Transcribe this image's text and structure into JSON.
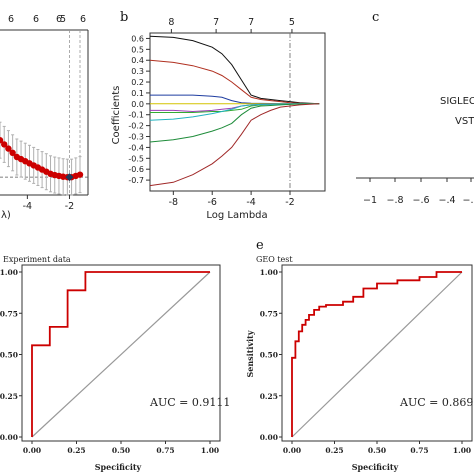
{
  "panels": {
    "a": {
      "letter": "",
      "top_ticks": [
        "6",
        "6",
        "6",
        "5",
        "6"
      ],
      "x_ticks": [
        "-4",
        "-2"
      ],
      "x_label": "λ)",
      "colors": {
        "points": "#cc0000",
        "errorbars": "#b0b0b0",
        "vline": "#999999"
      },
      "chart_data": {
        "type": "scatter",
        "title": "",
        "xlabel": "Log(λ)",
        "ylabel": "",
        "x": [
          -5.5,
          -5.3,
          -5.1,
          -4.9,
          -4.7,
          -4.5,
          -4.3,
          -4.1,
          -3.9,
          -3.7,
          -3.5,
          -3.3,
          -3.1,
          -2.9,
          -2.7,
          -2.5,
          -2.3,
          -2.1,
          -1.9,
          -1.7,
          -1.5
        ],
        "y": [
          0.36,
          0.35,
          0.34,
          0.33,
          0.32,
          0.31,
          0.305,
          0.3,
          0.295,
          0.29,
          0.285,
          0.28,
          0.275,
          0.27,
          0.267,
          0.265,
          0.263,
          0.262,
          0.262,
          0.265,
          0.268
        ],
        "vlines": [
          -2.0,
          -1.5
        ]
      }
    },
    "b": {
      "letter": "b",
      "top_ticks": [
        "8",
        "7",
        "7",
        "5"
      ],
      "y_ticks": [
        "0.6",
        "0.5",
        "0.4",
        "0.3",
        "0.2",
        "0.1",
        "0.0",
        "-0.1",
        "-0.2",
        "-0.3",
        "-0.4",
        "-0.5",
        "-0.6",
        "-0.7"
      ],
      "x_ticks": [
        "-8",
        "-6",
        "-4",
        "-2"
      ],
      "x_label": "Log Lambda",
      "y_label": "Coefficients",
      "chart_data": {
        "type": "line",
        "title": "",
        "xlabel": "Log Lambda",
        "ylabel": "Coefficients",
        "xlim": [
          -9.2,
          -0.2
        ],
        "ylim": [
          -0.8,
          0.65
        ],
        "top_axis": {
          "x": [
            -8.1,
            -5.8,
            -4.0,
            -1.9
          ],
          "labels": [
            "8",
            "7",
            "7",
            "5"
          ]
        },
        "vline": -2.0,
        "x": [
          -9.2,
          -8,
          -7,
          -6,
          -5.5,
          -5,
          -4.5,
          -4,
          -3.5,
          -3,
          -2.5,
          -2,
          -1.5,
          -1,
          -0.5
        ],
        "series": [
          {
            "color": "#111111",
            "values": [
              0.62,
              0.61,
              0.58,
              0.52,
              0.46,
              0.36,
              0.22,
              0.08,
              0.05,
              0.04,
              0.03,
              0.02,
              0.01,
              0.005,
              0.0
            ]
          },
          {
            "color": "#b03020",
            "values": [
              0.4,
              0.38,
              0.35,
              0.3,
              0.26,
              0.2,
              0.13,
              0.06,
              0.04,
              0.03,
              0.02,
              0.01,
              0.005,
              0.002,
              0.0
            ]
          },
          {
            "color": "#1e3ca0",
            "values": [
              0.08,
              0.08,
              0.08,
              0.07,
              0.06,
              0.03,
              0.01,
              0.005,
              0.004,
              0.003,
              0.002,
              0.001,
              0.0,
              0.0,
              0.0
            ]
          },
          {
            "color": "#33aa33",
            "values": [
              -0.08,
              -0.08,
              -0.08,
              -0.07,
              -0.07,
              -0.06,
              -0.05,
              -0.02,
              -0.01,
              -0.005,
              -0.003,
              -0.002,
              -0.001,
              0.0,
              0.0
            ]
          },
          {
            "color": "#d4c400",
            "values": [
              0.0,
              0.0,
              0.0,
              0.0,
              0.0,
              0.0,
              0.0,
              0.0,
              0.0,
              0.0,
              0.0,
              0.0,
              0.0,
              0.0,
              0.0
            ]
          },
          {
            "color": "#9b3fb5",
            "values": [
              -0.06,
              -0.06,
              -0.07,
              -0.06,
              -0.05,
              -0.04,
              -0.02,
              -0.01,
              -0.005,
              -0.003,
              -0.002,
              -0.001,
              0.0,
              0.0,
              0.0
            ]
          },
          {
            "color": "#22b3c0",
            "values": [
              -0.15,
              -0.14,
              -0.12,
              -0.09,
              -0.07,
              -0.05,
              -0.02,
              -0.01,
              -0.005,
              -0.003,
              -0.002,
              -0.001,
              0.0,
              0.0,
              0.0
            ]
          },
          {
            "color": "#1e8c3a",
            "values": [
              -0.35,
              -0.33,
              -0.3,
              -0.25,
              -0.22,
              -0.18,
              -0.1,
              -0.04,
              -0.02,
              -0.015,
              -0.01,
              -0.005,
              -0.002,
              0.0,
              0.0
            ]
          },
          {
            "color": "#a02828",
            "values": [
              -0.75,
              -0.72,
              -0.65,
              -0.55,
              -0.48,
              -0.4,
              -0.28,
              -0.15,
              -0.1,
              -0.06,
              -0.03,
              -0.02,
              -0.01,
              -0.004,
              0.0
            ]
          }
        ]
      }
    },
    "c": {
      "letter": "c",
      "labels": [
        "SIGLEC",
        "VST"
      ],
      "x_ticks": [
        "−1",
        "−.8",
        "−.6",
        "−.4",
        "−.2"
      ]
    },
    "d": {
      "letter": "",
      "title": "Experiment data",
      "auc_text": "AUC = 0.9111",
      "x_ticks": [
        "0.00",
        "0.25",
        "0.50",
        "0.75",
        "1.00"
      ],
      "y_ticks": [
        "1.00",
        "0.75",
        "0.50",
        "0.25",
        "0.00"
      ],
      "x_label": "Specificity",
      "colors": {
        "roc": "#cc0000",
        "diagonal": "#999999"
      },
      "chart_data": {
        "type": "line",
        "title": "Experiment data",
        "xlabel": "Specificity",
        "ylabel": "Sensitivity",
        "xlim": [
          0,
          1
        ],
        "ylim": [
          0,
          1
        ],
        "auc": 0.9111,
        "roc": [
          [
            0,
            0
          ],
          [
            0,
            0.556
          ],
          [
            0.1,
            0.556
          ],
          [
            0.1,
            0.667
          ],
          [
            0.2,
            0.667
          ],
          [
            0.2,
            0.889
          ],
          [
            0.3,
            0.889
          ],
          [
            0.3,
            1.0
          ],
          [
            1.0,
            1.0
          ]
        ]
      }
    },
    "e": {
      "letter": "e",
      "title": "GEO test",
      "auc_text": "AUC = 0.8691",
      "x_ticks": [
        "0.00",
        "0.25",
        "0.50",
        "0.75",
        "1.00"
      ],
      "y_ticks": [
        "1.00",
        "0.75",
        "0.50",
        "0.25",
        "0.00"
      ],
      "x_label": "Specificity",
      "y_label": "Sensitivity",
      "colors": {
        "roc": "#cc0000",
        "diagonal": "#999999"
      },
      "chart_data": {
        "type": "line",
        "title": "GEO test",
        "xlabel": "Specificity",
        "ylabel": "Sensitivity",
        "xlim": [
          0,
          1
        ],
        "ylim": [
          0,
          1
        ],
        "auc": 0.8691,
        "roc": [
          [
            0,
            0
          ],
          [
            0,
            0.48
          ],
          [
            0.02,
            0.48
          ],
          [
            0.02,
            0.58
          ],
          [
            0.04,
            0.58
          ],
          [
            0.04,
            0.64
          ],
          [
            0.06,
            0.64
          ],
          [
            0.06,
            0.68
          ],
          [
            0.08,
            0.68
          ],
          [
            0.08,
            0.71
          ],
          [
            0.1,
            0.71
          ],
          [
            0.1,
            0.74
          ],
          [
            0.13,
            0.74
          ],
          [
            0.13,
            0.77
          ],
          [
            0.16,
            0.77
          ],
          [
            0.16,
            0.79
          ],
          [
            0.2,
            0.79
          ],
          [
            0.2,
            0.8
          ],
          [
            0.3,
            0.8
          ],
          [
            0.3,
            0.82
          ],
          [
            0.36,
            0.82
          ],
          [
            0.36,
            0.85
          ],
          [
            0.42,
            0.85
          ],
          [
            0.42,
            0.9
          ],
          [
            0.5,
            0.9
          ],
          [
            0.5,
            0.93
          ],
          [
            0.62,
            0.93
          ],
          [
            0.62,
            0.95
          ],
          [
            0.75,
            0.95
          ],
          [
            0.75,
            0.97
          ],
          [
            0.85,
            0.97
          ],
          [
            0.85,
            1.0
          ],
          [
            1.0,
            1.0
          ]
        ]
      }
    }
  }
}
